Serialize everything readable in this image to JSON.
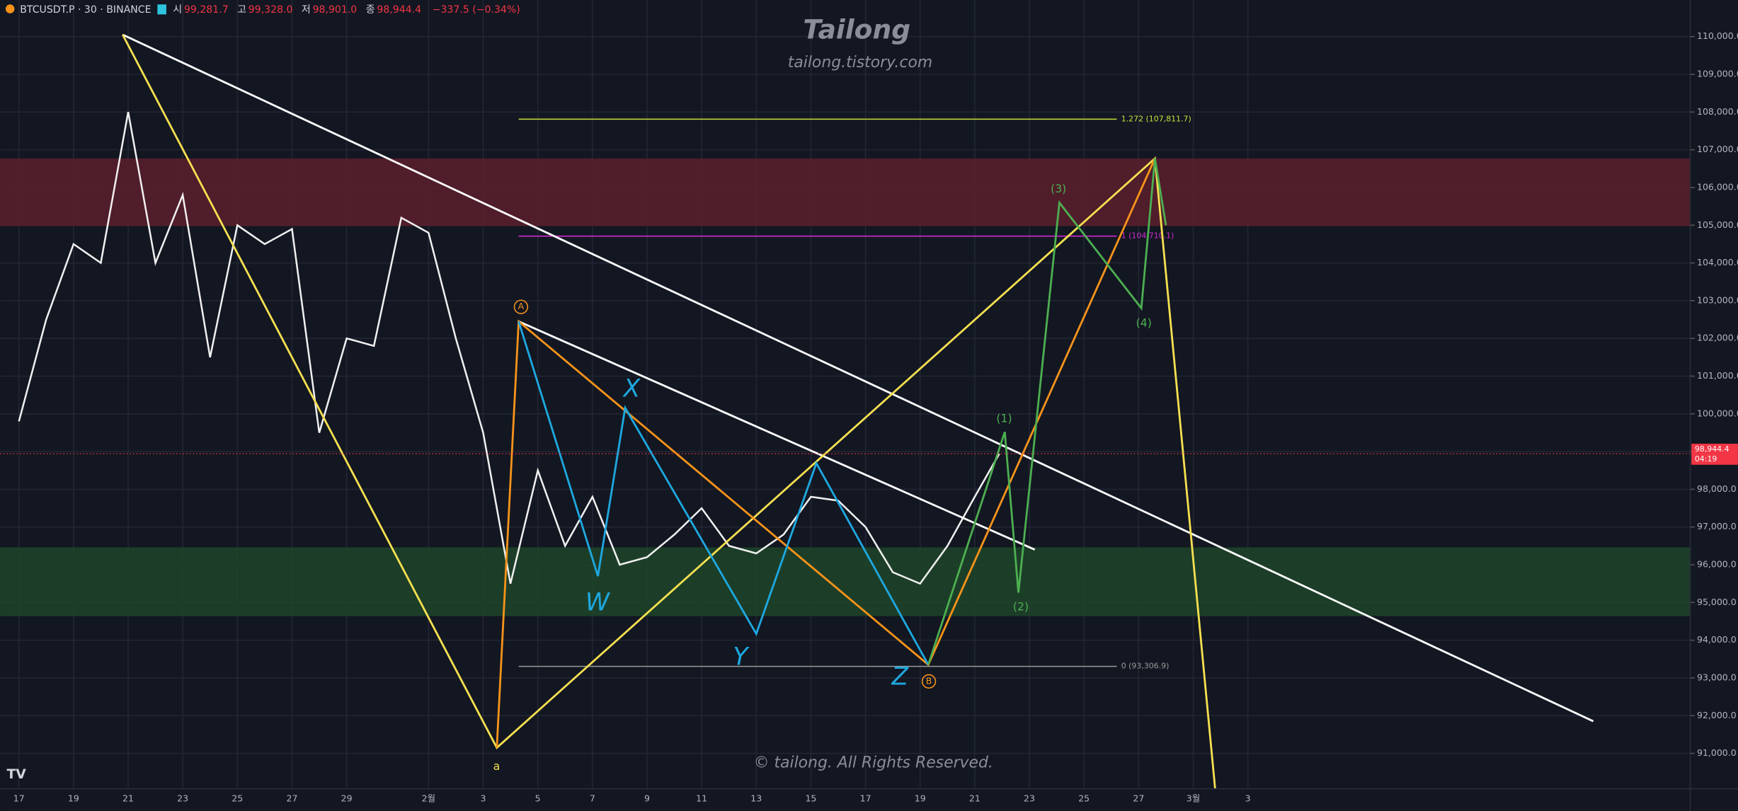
{
  "chart_data": {
    "type": "line",
    "symbol": "BTCUSDT.P · 30 · BINANCE",
    "ohlc": [
      {
        "label": "시",
        "value": "99,281.7"
      },
      {
        "label": "고",
        "value": "99,328.0"
      },
      {
        "label": "저",
        "value": "98,901.0"
      },
      {
        "label": "종",
        "value": "98,944.4"
      }
    ],
    "change": "−337.5 (−0.34%)",
    "title": "Tailong",
    "subtitle": "tailong.tistory.com",
    "copyright": "© tailong. All Rights Reserved.",
    "xlim": [
      -0.69,
      61.2
    ],
    "ylim": [
      90060,
      110970
    ],
    "grid": true,
    "xticks": [
      {
        "value": 0,
        "label": "17"
      },
      {
        "value": 2,
        "label": "19"
      },
      {
        "value": 4,
        "label": "21"
      },
      {
        "value": 6,
        "label": "23"
      },
      {
        "value": 8,
        "label": "25"
      },
      {
        "value": 10,
        "label": "27"
      },
      {
        "value": 12,
        "label": "29"
      },
      {
        "value": 15,
        "label": "2월"
      },
      {
        "value": 17,
        "label": "3"
      },
      {
        "value": 19,
        "label": "5"
      },
      {
        "value": 21,
        "label": "7"
      },
      {
        "value": 23,
        "label": "9"
      },
      {
        "value": 25,
        "label": "11"
      },
      {
        "value": 27,
        "label": "13"
      },
      {
        "value": 29,
        "label": "15"
      },
      {
        "value": 31,
        "label": "17"
      },
      {
        "value": 33,
        "label": "19"
      },
      {
        "value": 35,
        "label": "21"
      },
      {
        "value": 37,
        "label": "23"
      },
      {
        "value": 39,
        "label": "25"
      },
      {
        "value": 41,
        "label": "27"
      },
      {
        "value": 43,
        "label": "3월"
      },
      {
        "value": 45,
        "label": "3"
      }
    ],
    "yticks": [
      {
        "value": 91000,
        "label": "91,000.0"
      },
      {
        "value": 92000,
        "label": "92,000.0"
      },
      {
        "value": 93000,
        "label": "93,000.0"
      },
      {
        "value": 94000,
        "label": "94,000.0"
      },
      {
        "value": 95000,
        "label": "95,000.0"
      },
      {
        "value": 96000,
        "label": "96,000.0"
      },
      {
        "value": 97000,
        "label": "97,000.0"
      },
      {
        "value": 98000,
        "label": "98,000.0"
      },
      {
        "value": 99000,
        "label": "99,000.0"
      },
      {
        "value": 100000,
        "label": "100,000.0"
      },
      {
        "value": 101000,
        "label": "101,000.0"
      },
      {
        "value": 102000,
        "label": "102,000.0"
      },
      {
        "value": 103000,
        "label": "103,000.0"
      },
      {
        "value": 104000,
        "label": "104,000.0"
      },
      {
        "value": 105000,
        "label": "105,000.0"
      },
      {
        "value": 106000,
        "label": "106,000.0"
      },
      {
        "value": 107000,
        "label": "107,000.0"
      },
      {
        "value": 108000,
        "label": "108,000.0"
      },
      {
        "value": 109000,
        "label": "109,000.0"
      },
      {
        "value": 110000,
        "label": "110,000.0"
      }
    ],
    "zones": [
      {
        "color": "#5c1f2c",
        "range": [
          104978,
          106770
        ]
      },
      {
        "color": "#1f4529",
        "range": [
          94640,
          96460
        ]
      }
    ],
    "series": [
      {
        "color": "#f0f0f0",
        "x": [
          0,
          1,
          2,
          3,
          4,
          5,
          6,
          7,
          8,
          9,
          10,
          11,
          12,
          13,
          14,
          15,
          16,
          17,
          18,
          19,
          20,
          21,
          22,
          23,
          24,
          25,
          26,
          27,
          28,
          29,
          30,
          31,
          32,
          33,
          34,
          35,
          35.9
        ],
        "values": [
          99800,
          102500,
          104500,
          104000,
          108000,
          104000,
          105800,
          101500,
          105000,
          104500,
          104900,
          99500,
          102000,
          101800,
          105200,
          104800,
          102000,
          99500,
          95500,
          98500,
          96500,
          97800,
          96000,
          96200,
          96800,
          97500,
          96500,
          96300,
          96800,
          97800,
          97700,
          97000,
          95800,
          95500,
          96500,
          97800,
          98944.4
        ]
      }
    ],
    "last_price": {
      "value": 98944.4,
      "label": "98,944.4",
      "countdown": "04:19"
    },
    "fib_levels": [
      {
        "value": 107811.7,
        "label": "1.272 (107,811.7)",
        "color": "#c8e03c",
        "x": [
          18.3,
          40.2
        ]
      },
      {
        "value": 104710.1,
        "label": "1 (104,710.1)",
        "color": "#d22ad2",
        "x": [
          18.3,
          40.2
        ]
      },
      {
        "value": 93306.9,
        "label": "0 (93,306.9)",
        "color": "#9a9a9a",
        "x": [
          18.3,
          40.2
        ]
      }
    ],
    "drawings": [
      {
        "color": "#ffffff",
        "x": [
          3.8,
          57.65
        ],
        "y": [
          110050,
          91850
        ]
      },
      {
        "color": "#ffffff",
        "x": [
          18.3,
          37.2
        ],
        "y": [
          102450,
          96400
        ]
      },
      {
        "color": "#f5e050",
        "x": [
          3.8,
          17.5,
          41.6,
          43.8
        ],
        "y": [
          110050,
          91150,
          106770,
          90060
        ]
      },
      {
        "color": "#f7931a",
        "x": [
          17.5,
          18.3,
          33.3,
          41.6
        ],
        "y": [
          91150,
          102450,
          93350,
          106770
        ]
      },
      {
        "color": "#1ea8e0",
        "x": [
          18.3,
          21.2,
          22.2,
          27.0,
          29.2,
          33.3
        ],
        "y": [
          102450,
          95700,
          100160,
          94170,
          98690,
          93350
        ]
      },
      {
        "color": "#4caf50",
        "x": [
          33.3,
          36.1,
          36.6,
          38.1,
          41.1,
          41.6,
          42.0
        ],
        "y": [
          93350,
          99520,
          95260,
          105600,
          102800,
          106770,
          105000
        ]
      }
    ],
    "annotations": [
      {
        "text": "A",
        "color": "#f7931a"
      },
      {
        "text": "B",
        "color": "#f7931a"
      },
      {
        "text": "a",
        "color": "#f5e050"
      },
      {
        "text": "(1)",
        "color": "#4caf50"
      },
      {
        "text": "(2)",
        "color": "#4caf50"
      },
      {
        "text": "(3)",
        "color": "#4caf50"
      },
      {
        "text": "(4)",
        "color": "#4caf50"
      },
      {
        "text": "W",
        "color": "#1ea8e0"
      },
      {
        "text": "X",
        "color": "#1ea8e0"
      },
      {
        "text": "Y",
        "color": "#1ea8e0"
      },
      {
        "text": "Z",
        "color": "#1ea8e0"
      }
    ]
  }
}
